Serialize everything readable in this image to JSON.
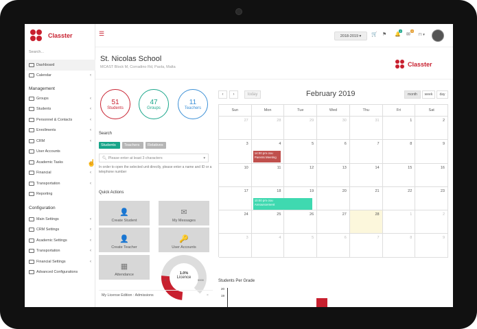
{
  "sidebar": {
    "brand": "Classter",
    "search_label": "Search...",
    "items_top": [
      {
        "label": "Dashboard",
        "active": true
      },
      {
        "label": "Calendar",
        "chev": true
      }
    ],
    "management_title": "Management",
    "management": [
      {
        "label": "Groups",
        "chev": true
      },
      {
        "label": "Students",
        "chev": true
      },
      {
        "label": "Personnel & Contacts",
        "chev": true
      },
      {
        "label": "Enrollments",
        "chev": true
      },
      {
        "label": "CRM",
        "chev": true
      },
      {
        "label": "User Accounts",
        "chev": false
      },
      {
        "label": "Academic Tasks",
        "chev": true
      },
      {
        "label": "Financial",
        "chev": true
      },
      {
        "label": "Transportation",
        "chev": true
      },
      {
        "label": "Reporting",
        "chev": false
      }
    ],
    "configuration_title": "Configuration",
    "configuration": [
      {
        "label": "Main Settings",
        "chev": true
      },
      {
        "label": "CRM Settings",
        "chev": true
      },
      {
        "label": "Academic Settings",
        "chev": true
      },
      {
        "label": "Transportation",
        "chev": true
      },
      {
        "label": "Financial Settings",
        "chev": true
      },
      {
        "label": "Advanced Configurations",
        "chev": false
      }
    ]
  },
  "topbar": {
    "menu_icon": "☰",
    "year": "2018-2019 ▾",
    "cart_icon": "🛒",
    "flag_icon": "⚑",
    "bell_icon": "🔔",
    "bell_badge": "2",
    "mail_icon": "✉",
    "mail_badge": "0",
    "lang": "ΓΙ ▾"
  },
  "header": {
    "school": "St. Nicolas School",
    "address": "MCAST Block M, Corradino Rd, Paola, Malta",
    "brand": "Classter"
  },
  "stats": [
    {
      "value": "51",
      "label": "Students",
      "color": "#c8202f"
    },
    {
      "value": "47",
      "label": "Groups",
      "color": "#17a589"
    },
    {
      "value": "11",
      "label": "Teachers",
      "color": "#3a8fd6"
    }
  ],
  "search": {
    "title": "Search",
    "tabs": [
      {
        "label": "Students",
        "color": "#17a589"
      },
      {
        "label": "Teachers",
        "color": "#b5b5b5"
      },
      {
        "label": "Relatives",
        "color": "#b5b5b5"
      }
    ],
    "placeholder": "Please enter at least 3 characters",
    "hint": "In order to open the selected unit directly, please enter a name and ID or a telephone number"
  },
  "quick_actions": {
    "title": "Quick Actions",
    "items": [
      {
        "label": "Create Student",
        "icon": "👤"
      },
      {
        "label": "My Messages",
        "icon": "✉"
      },
      {
        "label": "Create Teacher",
        "icon": "👤"
      },
      {
        "label": "User Accounts",
        "icon": "🔑"
      },
      {
        "label": "Attendance",
        "icon": "▦"
      }
    ]
  },
  "licence": {
    "percent": "1.0%",
    "label": "Licence",
    "min": "0",
    "max": "5000",
    "edition": "My License Edition : Admissions",
    "close": "×"
  },
  "calendar": {
    "prev": "‹",
    "next": "›",
    "today": "today",
    "title": "February 2019",
    "views": [
      "month",
      "week",
      "day"
    ],
    "weekdays": [
      "Sun",
      "Mon",
      "Tue",
      "Wed",
      "Thu",
      "Fri",
      "Sat"
    ],
    "days": [
      {
        "d": "27",
        "o": true
      },
      {
        "d": "28",
        "o": true
      },
      {
        "d": "29",
        "o": true
      },
      {
        "d": "30",
        "o": true
      },
      {
        "d": "31",
        "o": true
      },
      {
        "d": "1"
      },
      {
        "d": "2"
      },
      {
        "d": "3"
      },
      {
        "d": "4",
        "ev": {
          "text": "14:00 pm σου\nParents Meeting",
          "color": "#c0504d"
        }
      },
      {
        "d": "5"
      },
      {
        "d": "6"
      },
      {
        "d": "7"
      },
      {
        "d": "8"
      },
      {
        "d": "9"
      },
      {
        "d": "10"
      },
      {
        "d": "11"
      },
      {
        "d": "12"
      },
      {
        "d": "13"
      },
      {
        "d": "14"
      },
      {
        "d": "15"
      },
      {
        "d": "16"
      },
      {
        "d": "17"
      },
      {
        "d": "18",
        "ev": {
          "text": "10:00 pm σου\nAnnouncement",
          "color": "#3fd9b0",
          "wide": true
        }
      },
      {
        "d": "19"
      },
      {
        "d": "20"
      },
      {
        "d": "21"
      },
      {
        "d": "22"
      },
      {
        "d": "23"
      },
      {
        "d": "24"
      },
      {
        "d": "25"
      },
      {
        "d": "26"
      },
      {
        "d": "27"
      },
      {
        "d": "28",
        "today": true
      },
      {
        "d": "1",
        "o": true
      },
      {
        "d": "2",
        "o": true
      },
      {
        "d": "3",
        "o": true
      },
      {
        "d": "4",
        "o": true
      },
      {
        "d": "5",
        "o": true
      },
      {
        "d": "6",
        "o": true
      },
      {
        "d": "7",
        "o": true
      },
      {
        "d": "8",
        "o": true
      },
      {
        "d": "9",
        "o": true
      }
    ]
  },
  "students_per_grade": {
    "title": "Students Per Grade",
    "ticks": [
      "20",
      "19"
    ]
  }
}
